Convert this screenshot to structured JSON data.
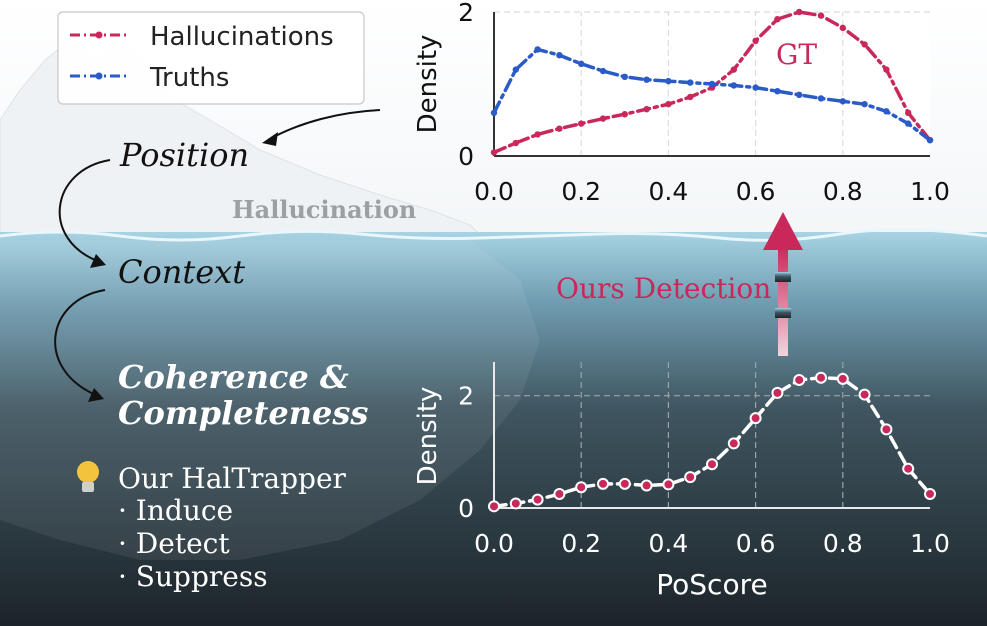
{
  "legend": {
    "items": [
      {
        "label": "Hallucinations",
        "color": "#c8285a"
      },
      {
        "label": "Truths",
        "color": "#2b5bc7"
      }
    ]
  },
  "flow": {
    "steps": [
      "Position",
      "Context",
      "Coherence &",
      "Completeness"
    ]
  },
  "iceberg_label": "Hallucination",
  "detection_label": "Ours Detection",
  "gt_label": "GT",
  "haltrapper": {
    "title": "Our HalTrapper",
    "items": [
      "· Induce",
      "· Detect",
      "· Suppress"
    ]
  },
  "colors": {
    "hallucination": "#c8285a",
    "truth": "#2b5bc7",
    "sea_top": "#8fc3d8",
    "sea_bottom": "#1f2a30"
  },
  "chart_data": [
    {
      "type": "line",
      "title": "",
      "xlabel": "",
      "ylabel": "Density",
      "xlim": [
        0.0,
        1.0
      ],
      "ylim": [
        0,
        2
      ],
      "xticks": [
        "0.0",
        "0.2",
        "0.4",
        "0.6",
        "0.8",
        "1.0"
      ],
      "yticks": [
        "0",
        "2"
      ],
      "grid": true,
      "annotations": [
        "GT"
      ],
      "series": [
        {
          "name": "Hallucinations",
          "color": "#c8285a",
          "x": [
            0.0,
            0.05,
            0.1,
            0.15,
            0.2,
            0.25,
            0.3,
            0.35,
            0.4,
            0.45,
            0.5,
            0.55,
            0.6,
            0.65,
            0.7,
            0.75,
            0.8,
            0.85,
            0.9,
            0.95,
            1.0
          ],
          "values": [
            0.05,
            0.18,
            0.3,
            0.38,
            0.45,
            0.52,
            0.58,
            0.65,
            0.72,
            0.82,
            0.95,
            1.2,
            1.6,
            1.9,
            2.0,
            1.95,
            1.78,
            1.55,
            1.2,
            0.6,
            0.22
          ]
        },
        {
          "name": "Truths",
          "color": "#2b5bc7",
          "x": [
            0.0,
            0.05,
            0.1,
            0.15,
            0.2,
            0.25,
            0.3,
            0.35,
            0.4,
            0.45,
            0.5,
            0.55,
            0.6,
            0.65,
            0.7,
            0.75,
            0.8,
            0.85,
            0.9,
            0.95,
            1.0
          ],
          "values": [
            0.6,
            1.2,
            1.48,
            1.4,
            1.28,
            1.18,
            1.1,
            1.06,
            1.04,
            1.02,
            1.0,
            0.98,
            0.95,
            0.9,
            0.85,
            0.8,
            0.76,
            0.72,
            0.62,
            0.45,
            0.22
          ]
        }
      ]
    },
    {
      "type": "line",
      "title": "",
      "xlabel": "PoScore",
      "ylabel": "Density",
      "xlim": [
        0.0,
        1.0
      ],
      "ylim": [
        0,
        2.6
      ],
      "xticks": [
        "0.0",
        "0.2",
        "0.4",
        "0.6",
        "0.8",
        "1.0"
      ],
      "yticks": [
        "0",
        "2"
      ],
      "grid": true,
      "series": [
        {
          "name": "",
          "color": "#ffffff",
          "marker_color": "#c8285a",
          "x": [
            0.0,
            0.05,
            0.1,
            0.15,
            0.2,
            0.25,
            0.3,
            0.35,
            0.4,
            0.45,
            0.5,
            0.55,
            0.6,
            0.65,
            0.7,
            0.75,
            0.8,
            0.85,
            0.9,
            0.95,
            1.0
          ],
          "values": [
            0.03,
            0.08,
            0.15,
            0.25,
            0.37,
            0.43,
            0.43,
            0.4,
            0.42,
            0.55,
            0.78,
            1.15,
            1.6,
            2.05,
            2.28,
            2.32,
            2.3,
            2.02,
            1.4,
            0.7,
            0.25
          ]
        }
      ]
    }
  ]
}
